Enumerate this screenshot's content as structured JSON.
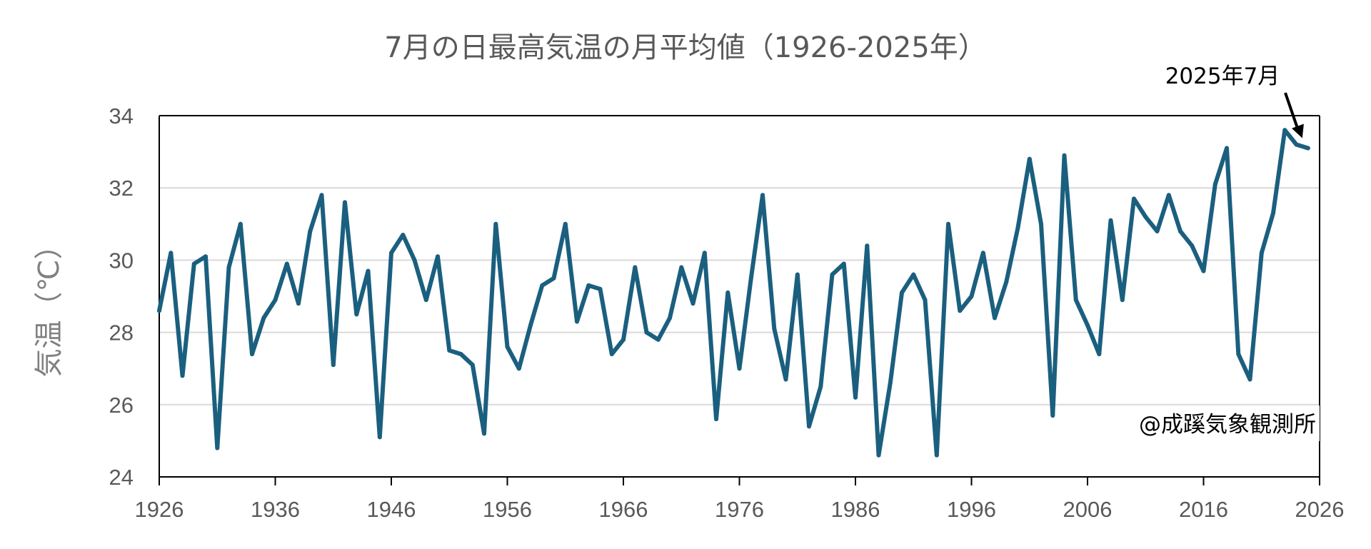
{
  "chart_data": {
    "type": "line",
    "title": "7月の日最高気温の月平均値（1926-2025年）",
    "ylabel": "気温（℃）",
    "xlabel": "",
    "xlim": [
      1926,
      2026
    ],
    "ylim": [
      24,
      34
    ],
    "x_ticks": [
      1926,
      1936,
      1946,
      1956,
      1966,
      1976,
      1986,
      1996,
      2006,
      2016,
      2026
    ],
    "y_ticks": [
      24,
      26,
      28,
      30,
      32,
      34
    ],
    "grid": "horizontal",
    "series": [
      {
        "color": "#1b5f7f",
        "x": [
          1926,
          1927,
          1928,
          1929,
          1930,
          1931,
          1932,
          1933,
          1934,
          1935,
          1936,
          1937,
          1938,
          1939,
          1940,
          1941,
          1942,
          1943,
          1944,
          1945,
          1946,
          1947,
          1948,
          1949,
          1950,
          1951,
          1952,
          1953,
          1954,
          1955,
          1956,
          1957,
          1958,
          1959,
          1960,
          1961,
          1962,
          1963,
          1964,
          1965,
          1966,
          1967,
          1968,
          1969,
          1970,
          1971,
          1972,
          1973,
          1974,
          1975,
          1976,
          1977,
          1978,
          1979,
          1980,
          1981,
          1982,
          1983,
          1984,
          1985,
          1986,
          1987,
          1988,
          1989,
          1990,
          1991,
          1992,
          1993,
          1994,
          1995,
          1996,
          1997,
          1998,
          1999,
          2000,
          2001,
          2002,
          2003,
          2004,
          2005,
          2006,
          2007,
          2008,
          2009,
          2010,
          2011,
          2012,
          2013,
          2014,
          2015,
          2016,
          2017,
          2018,
          2019,
          2020,
          2021,
          2022,
          2023,
          2024,
          2025
        ],
        "values": [
          28.6,
          30.2,
          26.8,
          29.9,
          30.1,
          24.8,
          29.8,
          31.0,
          27.4,
          28.4,
          28.9,
          29.9,
          28.8,
          30.8,
          31.8,
          27.1,
          31.6,
          28.5,
          29.7,
          25.1,
          30.2,
          30.7,
          30.0,
          28.9,
          30.1,
          27.5,
          27.4,
          27.1,
          25.2,
          31.0,
          27.6,
          27.0,
          28.2,
          29.3,
          29.5,
          31.0,
          28.3,
          29.3,
          29.2,
          27.4,
          27.8,
          29.8,
          28.0,
          27.8,
          28.4,
          29.8,
          28.8,
          30.2,
          25.6,
          29.1,
          27.0,
          29.5,
          31.8,
          28.1,
          26.7,
          29.6,
          25.4,
          26.5,
          29.6,
          29.9,
          26.2,
          30.4,
          24.6,
          26.6,
          29.1,
          29.6,
          28.9,
          24.6,
          31.0,
          28.6,
          29.0,
          30.2,
          28.4,
          29.4,
          30.9,
          32.8,
          31.0,
          25.7,
          32.9,
          28.9,
          28.2,
          27.4,
          31.1,
          28.9,
          31.7,
          31.2,
          30.8,
          31.8,
          30.8,
          30.4,
          29.7,
          32.1,
          33.1,
          27.4,
          26.7,
          30.2,
          31.3,
          33.6,
          33.2,
          33.1
        ]
      }
    ],
    "annotations": [
      {
        "text": "2025年7月",
        "points_to": [
          2025,
          33.1
        ],
        "arrow": true
      },
      {
        "text": "@成蹊気象観測所",
        "position": "bottom-right"
      }
    ]
  }
}
